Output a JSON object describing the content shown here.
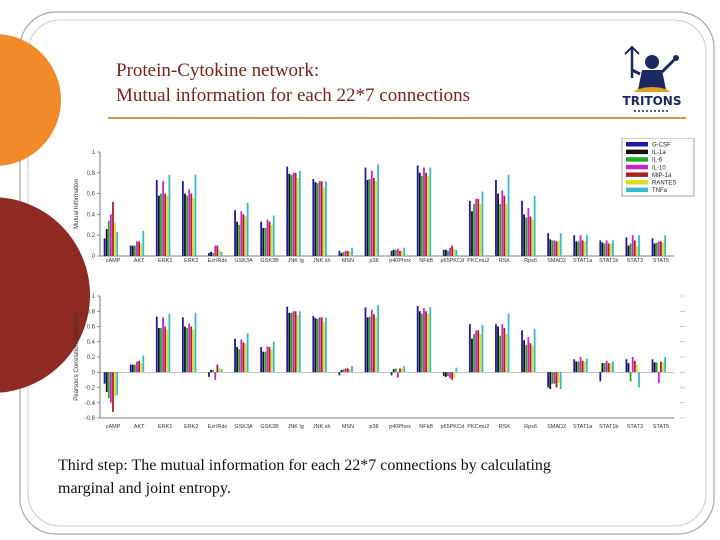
{
  "slide": {
    "title_line1": "Protein-Cytokine network:",
    "title_line2": "Mutual information for each 22*7 connections",
    "caption_line1": "Third step:  The mutual information for each 22*7 connections by calculating",
    "caption_line2": "marginal and joint entropy.",
    "logo_text": "TRITONS",
    "colors": {
      "accent_orange": "#f08a2a",
      "accent_red": "#8e2a20",
      "title": "#7a2418",
      "rule": "#d09a40"
    }
  },
  "chart_data": [
    {
      "type": "bar",
      "ylabel": "Mutual Information",
      "ylim": [
        0,
        1
      ],
      "yticks": [
        "0",
        "0.2",
        "0.4",
        "0.6",
        "0.8",
        "1"
      ],
      "categories": [
        "cAMP",
        "AKT",
        "ERK1",
        "ERK2",
        "Ezr/Rdx",
        "GSK3A",
        "GSK3B",
        "JNK lg",
        "JNK sh",
        "MSN",
        "p38",
        "p40Phox",
        "NFkB",
        "p65PKCd",
        "PKCmu2",
        "RSK",
        "Rps6",
        "SMAD2",
        "STAT1a",
        "STAT1b",
        "STAT3",
        "STAT5"
      ],
      "legend_position": "top-right",
      "series": [
        {
          "name": "G-CSF",
          "color": "#1a1aaa",
          "values": [
            0.17,
            0.1,
            0.73,
            0.72,
            0.03,
            0.44,
            0.33,
            0.86,
            0.74,
            0.05,
            0.85,
            0.05,
            0.87,
            0.06,
            0.53,
            0.73,
            0.53,
            0.22,
            0.2,
            0.15,
            0.18,
            0.17
          ]
        },
        {
          "name": "IL-1a",
          "color": "#111111",
          "values": [
            0.26,
            0.1,
            0.58,
            0.6,
            0.04,
            0.33,
            0.27,
            0.79,
            0.71,
            0.03,
            0.73,
            0.06,
            0.8,
            0.06,
            0.43,
            0.6,
            0.4,
            0.16,
            0.14,
            0.13,
            0.1,
            0.12
          ]
        },
        {
          "name": "IL-6",
          "color": "#22aa22",
          "values": [
            0.34,
            0.1,
            0.6,
            0.58,
            0.03,
            0.3,
            0.27,
            0.78,
            0.7,
            0.04,
            0.74,
            0.06,
            0.77,
            0.05,
            0.5,
            0.5,
            0.37,
            0.15,
            0.14,
            0.12,
            0.12,
            0.13
          ]
        },
        {
          "name": "IL-10",
          "color": "#cc22cc",
          "values": [
            0.4,
            0.14,
            0.72,
            0.64,
            0.1,
            0.43,
            0.35,
            0.8,
            0.72,
            0.05,
            0.82,
            0.07,
            0.85,
            0.08,
            0.55,
            0.63,
            0.46,
            0.15,
            0.2,
            0.15,
            0.2,
            0.14
          ]
        },
        {
          "name": "MIP-1a",
          "color": "#aa2222",
          "values": [
            0.52,
            0.14,
            0.6,
            0.6,
            0.1,
            0.4,
            0.33,
            0.8,
            0.72,
            0.05,
            0.75,
            0.05,
            0.8,
            0.1,
            0.55,
            0.58,
            0.38,
            0.14,
            0.15,
            0.12,
            0.15,
            0.14
          ]
        },
        {
          "name": "RANTES",
          "color": "#dddd22",
          "values": [
            0.32,
            0.12,
            0.58,
            0.56,
            0.06,
            0.38,
            0.3,
            0.75,
            0.66,
            0.04,
            0.72,
            0.05,
            0.77,
            0.07,
            0.5,
            0.5,
            0.35,
            0.14,
            0.14,
            0.12,
            0.1,
            0.13
          ]
        },
        {
          "name": "TNFa",
          "color": "#33bbcc",
          "values": [
            0.23,
            0.24,
            0.78,
            0.78,
            0.04,
            0.51,
            0.39,
            0.82,
            0.72,
            0.08,
            0.88,
            0.08,
            0.85,
            0.06,
            0.62,
            0.78,
            0.58,
            0.22,
            0.2,
            0.15,
            0.2,
            0.2
          ]
        }
      ]
    },
    {
      "type": "bar",
      "ylabel": "Pearson's Correlation Coefficient",
      "ylim": [
        -0.6,
        1
      ],
      "yticks": [
        "-0.6",
        "-0.4",
        "-0.2",
        "0",
        "0.2",
        "0.4",
        "0.6",
        "0.8",
        "1"
      ],
      "categories": [
        "cAMP",
        "AKT",
        "ERK1",
        "ERK2",
        "Ezr/Rdx",
        "GSK3A",
        "GSK3B",
        "JNK lg",
        "JNK sh",
        "MSN",
        "p38",
        "p40Phox",
        "NFkB",
        "p65PKCd",
        "PKCmu2",
        "RSK",
        "Rps6",
        "SMAD2",
        "STAT1a",
        "STAT1b",
        "STAT3",
        "STAT5"
      ],
      "series": [
        {
          "name": "G-CSF",
          "color": "#1a1aaa",
          "values": [
            -0.15,
            0.1,
            0.73,
            0.72,
            -0.06,
            0.44,
            0.33,
            0.86,
            0.74,
            -0.04,
            0.85,
            -0.04,
            0.87,
            -0.05,
            0.63,
            0.63,
            0.55,
            -0.2,
            0.17,
            -0.12,
            0.17,
            0.17
          ]
        },
        {
          "name": "IL-1a",
          "color": "#111111",
          "values": [
            -0.26,
            0.1,
            0.58,
            0.6,
            0.03,
            0.33,
            0.27,
            0.78,
            0.71,
            0.03,
            0.72,
            0.04,
            0.8,
            -0.06,
            0.44,
            0.6,
            0.42,
            -0.22,
            0.14,
            0.12,
            0.12,
            0.13
          ]
        },
        {
          "name": "IL-6",
          "color": "#22aa22",
          "values": [
            -0.34,
            0.1,
            0.58,
            0.58,
            0.03,
            0.3,
            0.27,
            0.78,
            0.7,
            0.04,
            0.73,
            0.05,
            0.77,
            -0.05,
            0.5,
            0.48,
            0.36,
            -0.15,
            0.14,
            0.12,
            -0.12,
            0.13
          ]
        },
        {
          "name": "IL-10",
          "color": "#cc22cc",
          "values": [
            -0.4,
            0.14,
            0.72,
            0.64,
            -0.1,
            0.43,
            0.34,
            0.8,
            0.72,
            0.05,
            0.82,
            -0.07,
            0.84,
            -0.08,
            0.55,
            0.63,
            0.46,
            -0.15,
            0.2,
            0.15,
            0.2,
            -0.14
          ]
        },
        {
          "name": "MIP-1a",
          "color": "#aa2222",
          "values": [
            -0.52,
            0.15,
            0.6,
            0.6,
            0.1,
            0.39,
            0.33,
            0.8,
            0.72,
            0.05,
            0.76,
            0.05,
            0.8,
            -0.1,
            0.55,
            0.58,
            0.38,
            -0.2,
            0.15,
            0.12,
            0.15,
            0.14
          ]
        },
        {
          "name": "RANTES",
          "color": "#dddd22",
          "values": [
            -0.32,
            0.12,
            0.56,
            0.56,
            0.06,
            0.38,
            0.3,
            0.75,
            0.66,
            0.04,
            0.72,
            0.05,
            0.77,
            -0.07,
            0.5,
            0.5,
            0.35,
            -0.14,
            0.14,
            0.12,
            0.1,
            0.13
          ]
        },
        {
          "name": "TNFa",
          "color": "#33bbcc",
          "values": [
            -0.3,
            0.22,
            0.77,
            0.78,
            0.04,
            0.51,
            0.4,
            0.8,
            0.72,
            0.08,
            0.88,
            0.08,
            0.85,
            0.06,
            0.62,
            0.77,
            0.57,
            -0.22,
            0.18,
            0.14,
            -0.2,
            0.2
          ]
        }
      ]
    }
  ]
}
